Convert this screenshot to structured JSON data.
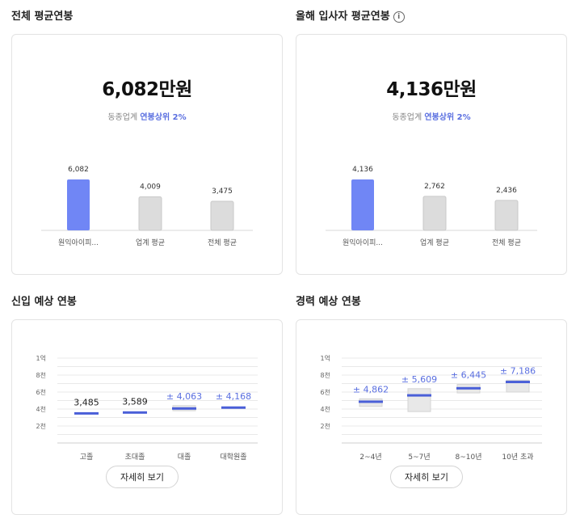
{
  "sections": {
    "total_avg_title": "전체 평균연봉",
    "new_hire_avg_title": "올해 입사자 평균연봉",
    "entry_expect_title": "신입 예상 연봉",
    "career_expect_title": "경력 예상 연봉"
  },
  "total_avg": {
    "amount": "6,082만원",
    "percentile_prefix": "동종업계",
    "percentile_highlight": "연봉상위 2%"
  },
  "new_hire_avg": {
    "amount": "4,136만원",
    "percentile_prefix": "동종업계",
    "percentile_highlight": "연봉상위 2%"
  },
  "detail_button": "자세히 보기",
  "colors": {
    "accent": "#7086f5",
    "accent_text": "#5a6fe0",
    "neutral_bar": "#dcdcdc",
    "range_box": "#e8e8e8"
  },
  "icons": {
    "info": "info-circle-icon"
  },
  "chart_data": [
    {
      "id": "total_avg_chart",
      "type": "bar",
      "categories": [
        "원익아이피...",
        "업계 평균",
        "전체 평균"
      ],
      "values": [
        6082,
        4009,
        3475
      ],
      "value_labels": [
        "6,082",
        "4,009",
        "3,475"
      ],
      "highlight_index": 0
    },
    {
      "id": "new_hire_chart",
      "type": "bar",
      "categories": [
        "원익아이피...",
        "업계 평균",
        "전체 평균"
      ],
      "values": [
        4136,
        2762,
        2436
      ],
      "value_labels": [
        "4,136",
        "2,762",
        "2,436"
      ],
      "highlight_index": 0
    },
    {
      "id": "entry_chart",
      "type": "range",
      "y_ticks": [
        "1억",
        "8천",
        "6천",
        "4천",
        "2천"
      ],
      "ylim": [
        0,
        10000
      ],
      "categories": [
        "고졸",
        "초대졸",
        "대졸",
        "대학원졸"
      ],
      "values": [
        3485,
        3589,
        4063,
        4168
      ],
      "value_labels": [
        "3,485",
        "3,589",
        "± 4,063",
        "± 4,168"
      ],
      "estimated": [
        false,
        false,
        true,
        true
      ],
      "ranges": [
        null,
        null,
        [
          3800,
          4400
        ],
        null
      ]
    },
    {
      "id": "career_chart",
      "type": "range",
      "y_ticks": [
        "1억",
        "8천",
        "6천",
        "4천",
        "2천"
      ],
      "ylim": [
        0,
        10000
      ],
      "categories": [
        "2~4년",
        "5~7년",
        "8~10년",
        "10년 초과"
      ],
      "values": [
        4862,
        5609,
        6445,
        7186
      ],
      "value_labels": [
        "± 4,862",
        "± 5,609",
        "± 6,445",
        "± 7,186"
      ],
      "estimated": [
        true,
        true,
        true,
        true
      ],
      "ranges": [
        [
          4300,
          5200
        ],
        [
          3700,
          6400
        ],
        [
          5900,
          6900
        ],
        [
          6000,
          7400
        ]
      ]
    }
  ]
}
